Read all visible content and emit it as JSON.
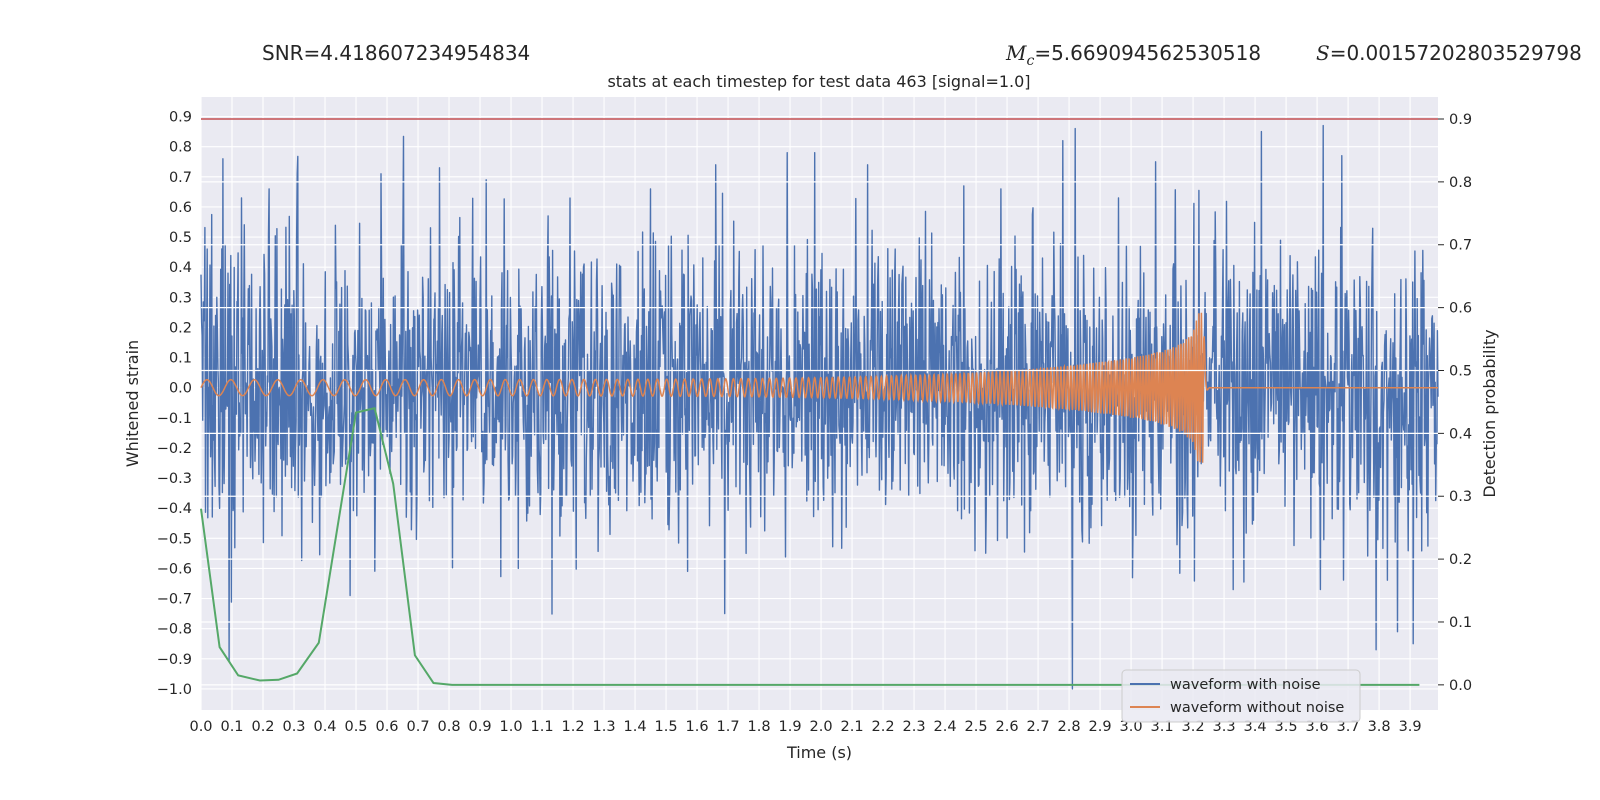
{
  "header": {
    "snr_label": "SNR=4.418607234954834",
    "mc_symbol": "M",
    "mc_sub": "c",
    "mc_value": "=5.669094562530518",
    "s_symbol": "S",
    "s_value": "=0.00157202803529798"
  },
  "subtitle": "stats at each timestep for test data 463 [signal=1.0]",
  "chart_data": {
    "type": "line",
    "title": "stats at each timestep for test data 463 [signal=1.0]",
    "xlabel": "Time (s)",
    "ylabel_left": "Whitened strain",
    "ylabel_right": "Detection probability",
    "xlim": [
      0.0,
      3.99
    ],
    "ylim_left": [
      -1.07,
      0.965
    ],
    "ylim_right": [
      -0.04,
      0.935
    ],
    "x_ticks": [
      "0.0",
      "0.1",
      "0.2",
      "0.3",
      "0.4",
      "0.5",
      "0.6",
      "0.7",
      "0.8",
      "0.9",
      "1.0",
      "1.1",
      "1.2",
      "1.3",
      "1.4",
      "1.5",
      "1.6",
      "1.7",
      "1.8",
      "1.9",
      "2.0",
      "2.1",
      "2.2",
      "2.3",
      "2.4",
      "2.5",
      "2.6",
      "2.7",
      "2.8",
      "2.9",
      "3.0",
      "3.1",
      "3.2",
      "3.3",
      "3.4",
      "3.5",
      "3.6",
      "3.7",
      "3.8",
      "3.9"
    ],
    "y_ticks_left": [
      "0.9",
      "0.8",
      "0.7",
      "0.6",
      "0.5",
      "0.4",
      "0.3",
      "0.2",
      "0.1",
      "0.0",
      "−0.1",
      "−0.2",
      "−0.3",
      "−0.4",
      "−0.5",
      "−0.6",
      "−0.7",
      "−0.8",
      "−0.9",
      "−1.0"
    ],
    "y_ticks_right": [
      "0.9",
      "0.8",
      "0.7",
      "0.6",
      "0.5",
      "0.4",
      "0.3",
      "0.2",
      "0.1",
      "0.0"
    ],
    "grid": true,
    "legend_position": "bottom-right",
    "series": [
      {
        "name": "waveform with noise",
        "color": "#4c72b0",
        "axis": "left",
        "duration": 3.99,
        "noise_amplitude": 0.24,
        "peaks": [
          [
            0.02,
            0.46
          ],
          [
            0.07,
            0.76
          ],
          [
            0.09,
            -0.91
          ],
          [
            0.13,
            0.63
          ],
          [
            0.22,
            0.66
          ],
          [
            0.31,
            0.71
          ],
          [
            0.48,
            -0.69
          ],
          [
            0.58,
            0.71
          ],
          [
            0.77,
            0.73
          ],
          [
            0.92,
            0.69
          ],
          [
            1.12,
            0.57
          ],
          [
            1.45,
            0.66
          ],
          [
            1.66,
            0.74
          ],
          [
            1.69,
            -0.75
          ],
          [
            1.89,
            0.78
          ],
          [
            1.98,
            0.78
          ],
          [
            2.15,
            0.74
          ],
          [
            2.46,
            0.67
          ],
          [
            2.58,
            0.66
          ],
          [
            2.78,
            0.82
          ],
          [
            2.81,
            -1.0
          ],
          [
            2.82,
            0.86
          ],
          [
            2.96,
            0.63
          ],
          [
            3.08,
            0.75
          ],
          [
            3.42,
            0.85
          ],
          [
            3.61,
            -0.67
          ],
          [
            3.62,
            0.87
          ],
          [
            3.68,
            0.77
          ],
          [
            3.79,
            -0.87
          ],
          [
            3.86,
            -0.81
          ],
          [
            3.91,
            -0.85
          ]
        ]
      },
      {
        "name": "waveform without noise",
        "color": "#dd8452",
        "axis": "left",
        "merger_time": 3.235,
        "start_frequency": 13,
        "end_frequency": 48,
        "start_amplitude": 0.025,
        "peak_amplitude": 0.24
      },
      {
        "name": "",
        "color": "#55a868",
        "axis": "right",
        "x": [
          0.0,
          0.06,
          0.12,
          0.19,
          0.25,
          0.31,
          0.38,
          0.44,
          0.5,
          0.56,
          0.62,
          0.69,
          0.75,
          0.81,
          0.88,
          1.0,
          1.5,
          2.0,
          2.5,
          3.0,
          3.5,
          3.93
        ],
        "values": [
          0.28,
          0.06,
          0.015,
          0.007,
          0.008,
          0.018,
          0.067,
          0.25,
          0.433,
          0.44,
          0.32,
          0.047,
          0.003,
          0.0,
          0.0,
          0.0,
          0.0,
          0.0,
          0.0,
          0.0,
          0.0,
          0.0
        ]
      }
    ],
    "threshold": {
      "color": "#c44e52",
      "axis": "right",
      "value": 0.9
    }
  }
}
